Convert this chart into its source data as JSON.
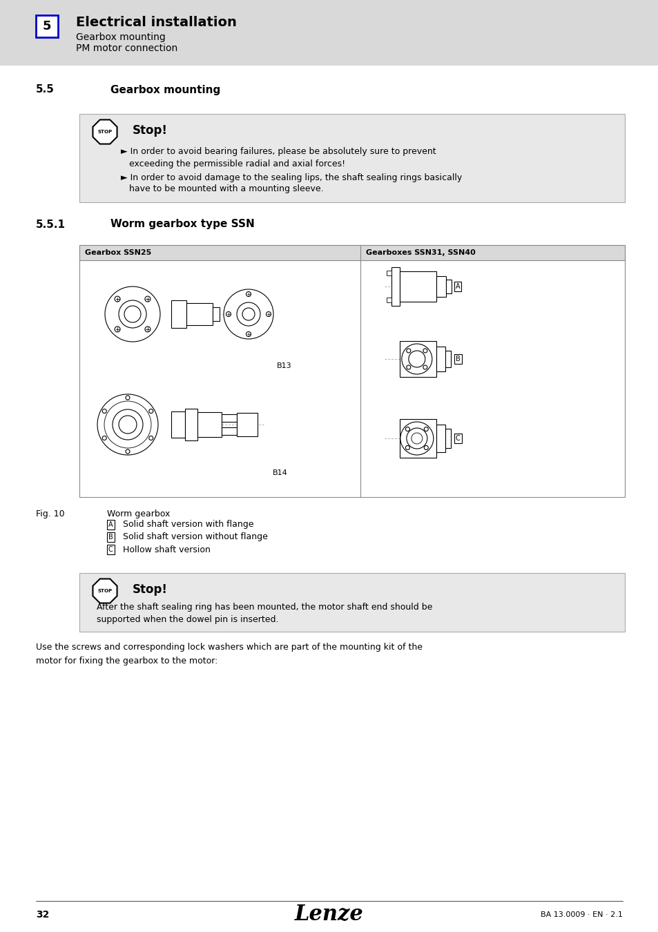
{
  "page_bg": "#ffffff",
  "header_bg": "#d9d9d9",
  "header_number": "5",
  "header_number_box_color": "#0000cc",
  "header_title": "Electrical installation",
  "header_sub1": "Gearbox mounting",
  "header_sub2": "PM motor connection",
  "section_num": "5.5",
  "section_title": "Gearbox mounting",
  "stop_box_bg": "#e8e8e8",
  "stop_title": "Stop!",
  "stop_bullet1_line1": "► In order to avoid bearing failures, please be absolutely sure to prevent",
  "stop_bullet1_line2": "   exceeding the permissible radial and axial forces!",
  "stop_bullet2_line1": "► In order to avoid damage to the sealing lips, the shaft sealing rings basically",
  "stop_bullet2_line2": "   have to be mounted with a mounting sleeve.",
  "subsection_num": "5.5.1",
  "subsection_title": "Worm gearbox type SSN",
  "table_header_left": "Gearbox SSN25",
  "table_header_right": "Gearboxes SSN31, SSN40",
  "table_bg": "#ffffff",
  "table_header_bg": "#d9d9d9",
  "label_b13": "B13",
  "label_b14": "B14",
  "label_A": "A",
  "label_B": "B",
  "label_C": "C",
  "fig_label": "Fig. 10",
  "fig_caption": "Worm gearbox",
  "legend_A": "Solid shaft version with flange",
  "legend_B": "Solid shaft version without flange",
  "legend_C": "Hollow shaft version",
  "stop2_title": "Stop!",
  "stop2_line1": "After the shaft sealing ring has been mounted, the motor shaft end should be",
  "stop2_line2": "supported when the dowel pin is inserted.",
  "body_text1": "Use the screws and corresponding lock washers which are part of the mounting kit of the",
  "body_text2": "motor for fixing the gearbox to the motor:",
  "footer_page": "32",
  "footer_brand": "Lenze",
  "footer_ref": "BA 13.0009 · EN · 2.1"
}
